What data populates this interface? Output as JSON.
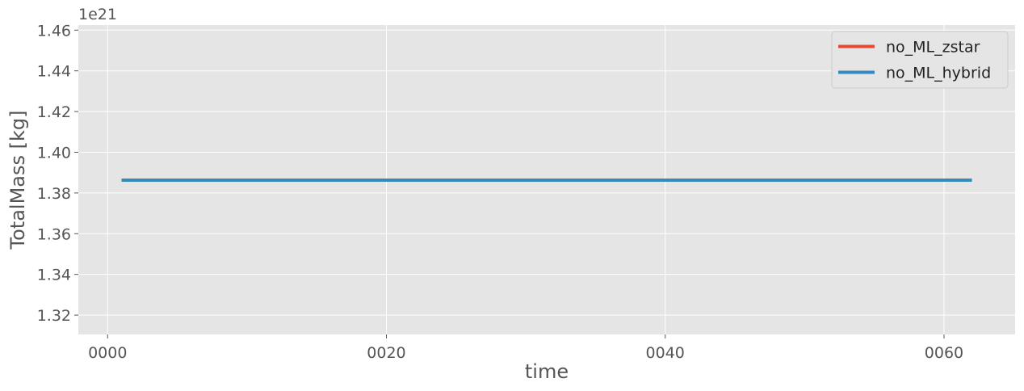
{
  "chart_data": {
    "type": "line",
    "title": "",
    "xlabel": "time",
    "ylabel": "TotalMass [kg]",
    "y_offset_label": "1e21",
    "x_tick_labels": [
      "0000",
      "0020",
      "0040",
      "0060"
    ],
    "x_ticks": [
      0,
      20,
      40,
      60
    ],
    "y_tick_labels": [
      "1.32",
      "1.34",
      "1.36",
      "1.38",
      "1.40",
      "1.42",
      "1.44",
      "1.46"
    ],
    "y_ticks": [
      1.32,
      1.34,
      1.36,
      1.38,
      1.4,
      1.42,
      1.44,
      1.46
    ],
    "xlim": [
      -2.1,
      65.1
    ],
    "ylim": [
      1.3105,
      1.4625
    ],
    "grid": true,
    "legend_position": "top-right",
    "series": [
      {
        "name": "no_ML_zstar",
        "color": "#E24A33",
        "x": [
          1,
          62
        ],
        "y": [
          1.3863,
          1.3863
        ]
      },
      {
        "name": "no_ML_hybrid",
        "color": "#348ABD",
        "x": [
          1,
          62
        ],
        "y": [
          1.3863,
          1.3863
        ]
      }
    ]
  },
  "colors": {
    "plot_background": "#E5E5E5",
    "grid": "#FFFFFF",
    "text": "#555555"
  }
}
